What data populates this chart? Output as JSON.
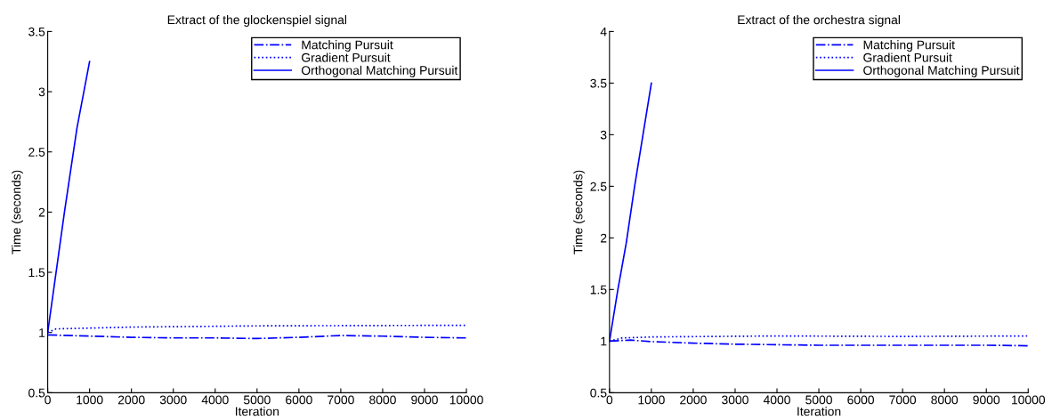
{
  "chart_data": [
    {
      "type": "line",
      "title": "Extract of the glockenspiel signal",
      "xlabel": "Iteration",
      "ylabel": "Time (seconds)",
      "xlim": [
        0,
        10000
      ],
      "xticks": [
        0,
        1000,
        2000,
        3000,
        4000,
        5000,
        6000,
        7000,
        8000,
        9000,
        10000
      ],
      "ylim": [
        0.5,
        3.5
      ],
      "yticks": [
        0.5,
        1,
        1.5,
        2,
        2.5,
        3,
        3.5
      ],
      "grid": false,
      "legend": "top right",
      "series": [
        {
          "name": "Matching Pursuit",
          "color": "#0000ff",
          "line_style": "dashdot",
          "x": [
            0,
            1000,
            2000,
            3000,
            4000,
            5000,
            6000,
            7000,
            8000,
            9000,
            10000
          ],
          "values": [
            0.98,
            0.97,
            0.96,
            0.955,
            0.955,
            0.95,
            0.96,
            0.975,
            0.97,
            0.96,
            0.955
          ]
        },
        {
          "name": "Gradient Pursuit",
          "color": "#0000ff",
          "line_style": "dotted",
          "x": [
            0,
            200,
            2000,
            5000,
            10000
          ],
          "values": [
            1.0,
            1.03,
            1.045,
            1.055,
            1.06
          ]
        },
        {
          "name": "Orthogonal Matching Pursuit",
          "color": "#0000ff",
          "line_style": "solid",
          "x": [
            0,
            200,
            400,
            700,
            1000
          ],
          "values": [
            1.0,
            1.5,
            2.0,
            2.7,
            3.25
          ]
        }
      ]
    },
    {
      "type": "line",
      "title": "Extract of the orchestra signal",
      "xlabel": "Iteration",
      "ylabel": "Time (seconds)",
      "xlim": [
        0,
        10000
      ],
      "xticks": [
        0,
        1000,
        2000,
        3000,
        4000,
        5000,
        6000,
        7000,
        8000,
        9000,
        10000
      ],
      "ylim": [
        0.5,
        4
      ],
      "yticks": [
        0.5,
        1,
        1.5,
        2,
        2.5,
        3,
        3.5,
        4
      ],
      "grid": false,
      "legend": "top right",
      "series": [
        {
          "name": "Matching Pursuit",
          "color": "#0000ff",
          "line_style": "dashdot",
          "x": [
            0,
            500,
            1000,
            2000,
            3000,
            4000,
            5000,
            7000,
            9000,
            10000
          ],
          "values": [
            1.0,
            1.01,
            0.995,
            0.98,
            0.97,
            0.965,
            0.96,
            0.96,
            0.96,
            0.955
          ]
        },
        {
          "name": "Gradient Pursuit",
          "color": "#0000ff",
          "line_style": "dotted",
          "x": [
            0,
            300,
            1000,
            4000,
            7000,
            10000
          ],
          "values": [
            1.0,
            1.03,
            1.04,
            1.05,
            1.045,
            1.05
          ]
        },
        {
          "name": "Orthogonal Matching Pursuit",
          "color": "#0000ff",
          "line_style": "solid",
          "x": [
            0,
            200,
            400,
            600,
            800,
            1000
          ],
          "values": [
            1.0,
            1.5,
            1.95,
            2.5,
            3.0,
            3.5
          ]
        }
      ]
    }
  ]
}
